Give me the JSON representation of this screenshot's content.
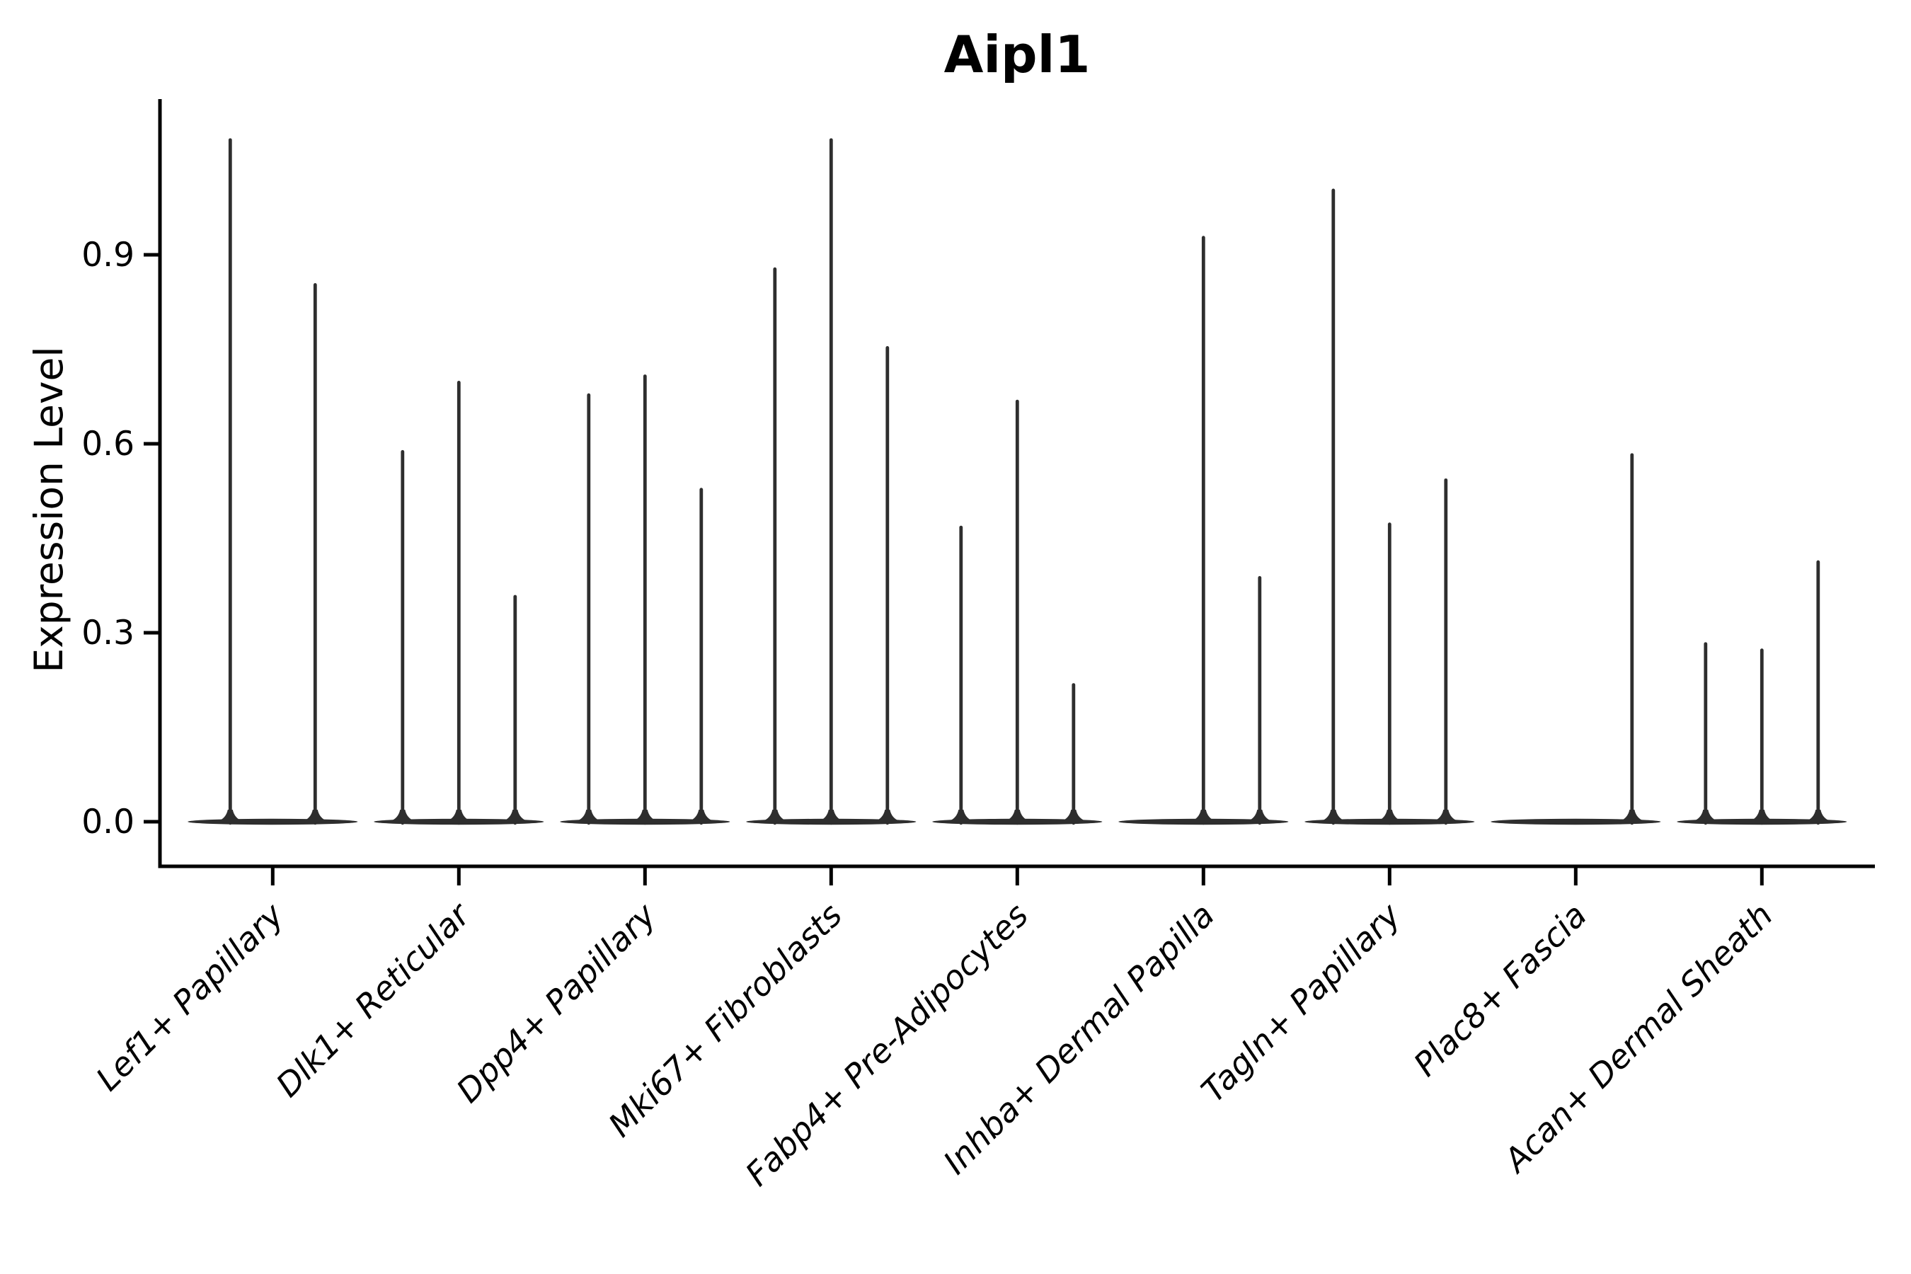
{
  "chart_data": {
    "type": "violin",
    "title": "Aipl1",
    "ylabel": "Expression Level",
    "xlabel": "",
    "ytick_labels": [
      "0.0",
      "0.3",
      "0.6",
      "0.9"
    ],
    "ytick_values": [
      0.0,
      0.3,
      0.6,
      0.9
    ],
    "ylim": [
      -0.07,
      1.15
    ],
    "grid": false,
    "legend_position": "none",
    "x_axis_label_angle_deg": 45,
    "categories": [
      "Lef1+ Papillary",
      "Dlk1+ Reticular",
      "Dpp4+ Papillary",
      "Mki67+ Fibroblasts",
      "Fabp4+ Pre-Adipocytes",
      "Inhba+ Dermal Papilla",
      "Tagln+ Papillary",
      "Plac8+ Fascia",
      "Acan+ Dermal Sheath"
    ],
    "groups": [
      {
        "category": "Lef1+ Papillary",
        "violin_peaks": [
          1.085,
          0.855
        ]
      },
      {
        "category": "Dlk1+ Reticular",
        "violin_peaks": [
          0.59,
          0.7,
          0.36
        ]
      },
      {
        "category": "Dpp4+ Papillary",
        "violin_peaks": [
          0.68,
          0.71,
          0.53
        ]
      },
      {
        "category": "Mki67+ Fibroblasts",
        "violin_peaks": [
          0.88,
          1.085,
          0.755
        ]
      },
      {
        "category": "Fabp4+ Pre-Adipocytes",
        "violin_peaks": [
          0.47,
          0.67,
          0.22
        ]
      },
      {
        "category": "Inhba+ Dermal Papilla",
        "violin_peaks": [
          0,
          0.93,
          0.39
        ]
      },
      {
        "category": "Tagln+ Papillary",
        "violin_peaks": [
          1.005,
          0.475,
          0.545
        ]
      },
      {
        "category": "Plac8+ Fascia",
        "violin_peaks": [
          0,
          0,
          0.585
        ]
      },
      {
        "category": "Acan+ Dermal Sheath",
        "violin_peaks": [
          0.285,
          0.275,
          0.415
        ]
      }
    ]
  },
  "style": {
    "ink_color": "#000000",
    "violin_color": "#2e2e2e",
    "background_color": "#ffffff"
  }
}
